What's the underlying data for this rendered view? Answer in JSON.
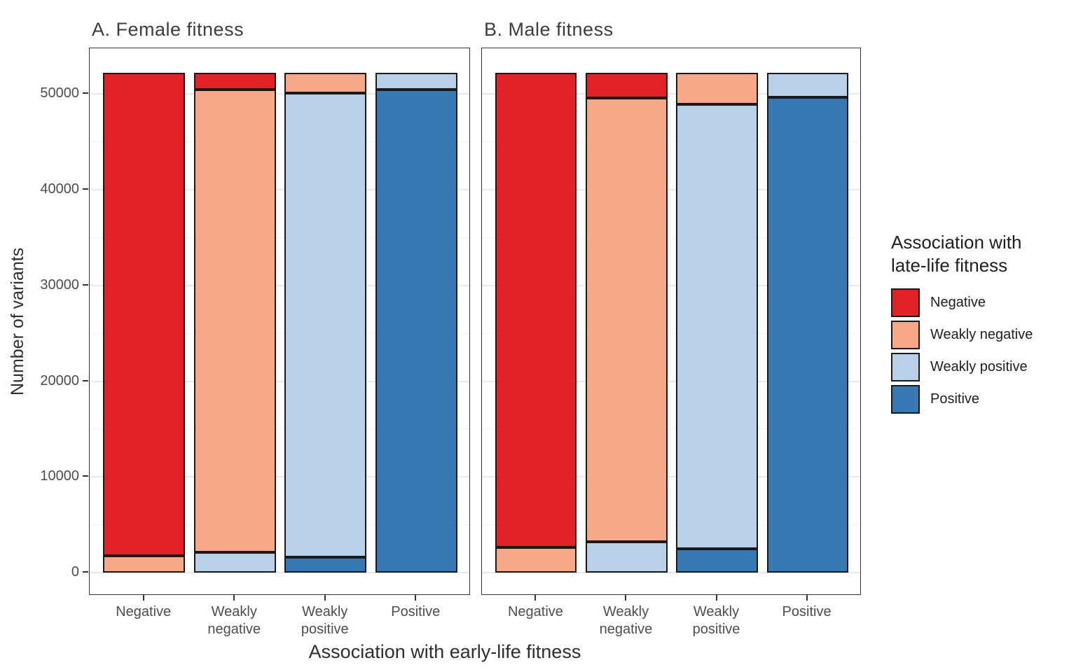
{
  "figure": {
    "legend": {
      "title_lines": [
        "Association with",
        "late-life fitness"
      ]
    }
  },
  "chart_data": {
    "type": "bar",
    "stacked": true,
    "grid": true,
    "legend_position": "right",
    "legend_title": "Association with late-life fitness",
    "xlabel": "Association with early-life fitness",
    "ylabel": "Number of variants",
    "categories": [
      "Negative",
      "Weakly negative",
      "Weakly positive",
      "Positive"
    ],
    "category_tick_labels": [
      "Negative",
      "Weakly\nnegative",
      "Weakly\npositive",
      "Positive"
    ],
    "y_ticks": [
      0,
      10000,
      20000,
      30000,
      40000,
      50000
    ],
    "y_minor_ticks": [
      5000,
      15000,
      25000,
      35000,
      45000
    ],
    "ylim": [
      0,
      54800
    ],
    "bar_total_per_category": 52200,
    "legend_entries": [
      "Negative",
      "Weakly negative",
      "Weakly positive",
      "Positive"
    ],
    "stack_order_bottom_to_top": [
      "Positive",
      "Weakly positive",
      "Weakly negative",
      "Negative"
    ],
    "series_colors": {
      "Negative": "#e32227",
      "Weakly negative": "#f7a888",
      "Weakly positive": "#bad0e8",
      "Positive": "#3879b4"
    },
    "panels": [
      {
        "title": "A. Female fitness",
        "series": [
          {
            "name": "Negative",
            "values": [
              50450,
              1750,
              0,
              0
            ]
          },
          {
            "name": "Weakly negative",
            "values": [
              1750,
              48300,
              2100,
              0
            ]
          },
          {
            "name": "Weakly positive",
            "values": [
              0,
              2150,
              48500,
              1750
            ]
          },
          {
            "name": "Positive",
            "values": [
              0,
              0,
              1600,
              50450
            ]
          }
        ]
      },
      {
        "title": "B. Male fitness",
        "series": [
          {
            "name": "Negative",
            "values": [
              49550,
              2650,
              0,
              0
            ]
          },
          {
            "name": "Weakly negative",
            "values": [
              2650,
              46300,
              3250,
              0
            ]
          },
          {
            "name": "Weakly positive",
            "values": [
              0,
              3250,
              46450,
              2550
            ]
          },
          {
            "name": "Positive",
            "values": [
              0,
              0,
              2500,
              49650
            ]
          }
        ]
      }
    ]
  }
}
